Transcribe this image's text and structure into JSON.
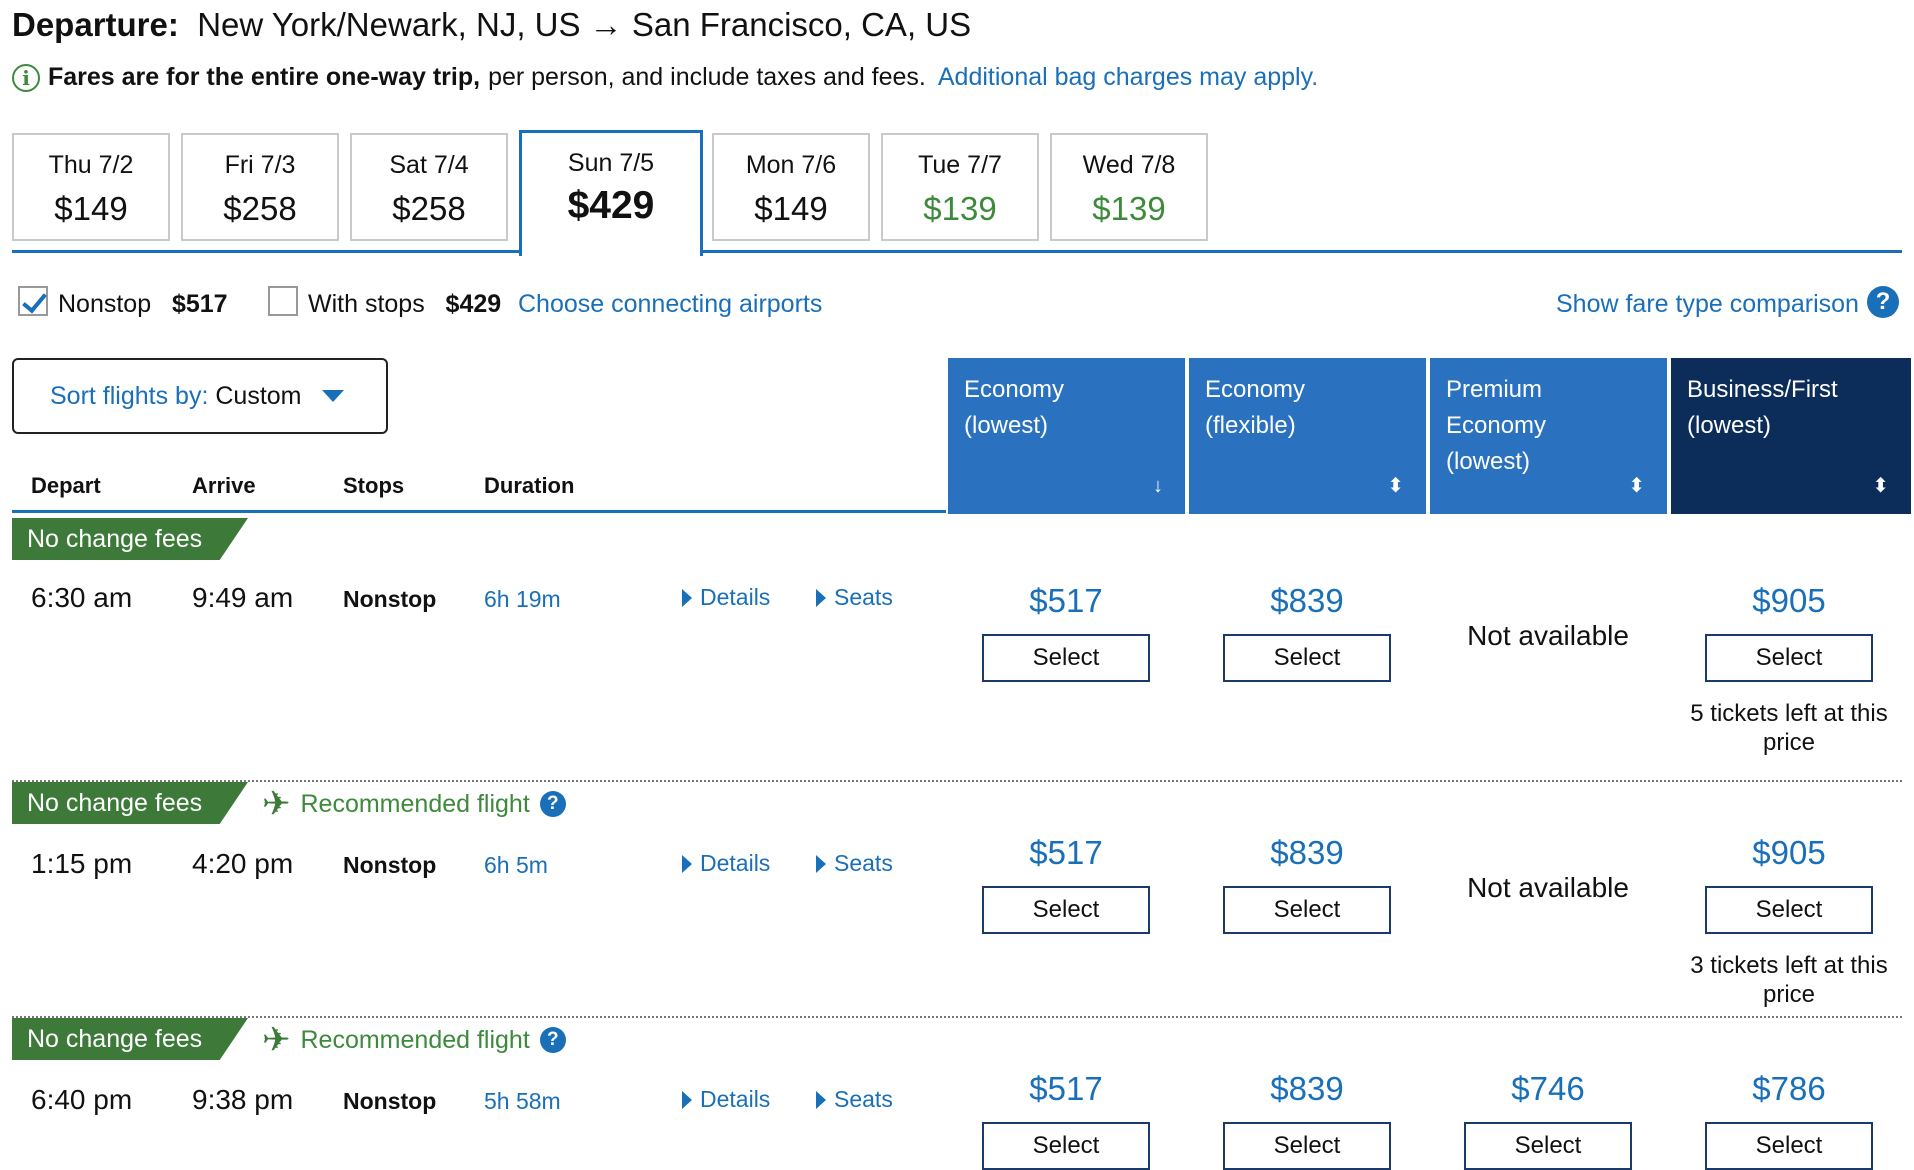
{
  "header": {
    "title_bold": "Departure:",
    "route": "New York/Newark, NJ, US → San Francisco, CA, US",
    "info_bold": "Fares are for the entire one-way trip,",
    "info_rest": "per person, and include taxes and fees.",
    "info_link": "Additional bag charges may apply."
  },
  "date_tabs": [
    {
      "day": "Thu 7/2",
      "price": "$149",
      "color": "#111111"
    },
    {
      "day": "Fri 7/3",
      "price": "$258",
      "color": "#111111"
    },
    {
      "day": "Sat 7/4",
      "price": "$258",
      "color": "#111111"
    },
    {
      "day": "Sun 7/5",
      "price": "$429",
      "color": "#111111",
      "active": true
    },
    {
      "day": "Mon 7/6",
      "price": "$149",
      "color": "#111111"
    },
    {
      "day": "Tue 7/7",
      "price": "$139",
      "color": "#3d8a3d"
    },
    {
      "day": "Wed 7/8",
      "price": "$139",
      "color": "#3d8a3d"
    }
  ],
  "filters": {
    "nonstop_label": "Nonstop",
    "nonstop_price": "$517",
    "nonstop_checked": true,
    "stops_label": "With stops",
    "stops_price": "$429",
    "stops_checked": false,
    "connecting_link": "Choose connecting airports",
    "fare_compare_link": "Show fare type comparison"
  },
  "sort": {
    "label": "Sort flights by:",
    "value": "Custom"
  },
  "columns": {
    "depart": "Depart",
    "arrive": "Arrive",
    "stops": "Stops",
    "duration": "Duration"
  },
  "cabins": [
    {
      "line1": "Economy",
      "line2": "(lowest)",
      "line3": "",
      "indicator": "↓"
    },
    {
      "line1": "Economy",
      "line2": "(flexible)",
      "line3": "",
      "indicator": "⬍"
    },
    {
      "line1": "Premium",
      "line2": "Economy",
      "line3": "(lowest)",
      "indicator": "⬍"
    },
    {
      "line1": "Business/First",
      "line2": "(lowest)",
      "line3": "",
      "indicator": "⬍"
    }
  ],
  "flights": [
    {
      "badge": "No change fees",
      "recommended": "",
      "depart": "6:30 am",
      "arrive": "9:49 am",
      "stops": "Nonstop",
      "duration": "6h 19m",
      "details": "Details",
      "seats": "Seats",
      "fares": [
        {
          "price": "$517",
          "select": "Select"
        },
        {
          "price": "$839",
          "select": "Select"
        },
        {
          "unavailable": "Not available"
        },
        {
          "price": "$905",
          "select": "Select",
          "note": "5 tickets left at this price"
        }
      ]
    },
    {
      "badge": "No change fees",
      "recommended": "Recommended flight",
      "depart": "1:15 pm",
      "arrive": "4:20 pm",
      "stops": "Nonstop",
      "duration": "6h 5m",
      "details": "Details",
      "seats": "Seats",
      "fares": [
        {
          "price": "$517",
          "select": "Select"
        },
        {
          "price": "$839",
          "select": "Select"
        },
        {
          "unavailable": "Not available"
        },
        {
          "price": "$905",
          "select": "Select",
          "note": "3 tickets left at this price"
        }
      ]
    },
    {
      "badge": "No change fees",
      "recommended": "Recommended flight",
      "depart": "6:40 pm",
      "arrive": "9:38 pm",
      "stops": "Nonstop",
      "duration": "5h 58m",
      "details": "Details",
      "seats": "Seats",
      "fares": [
        {
          "price": "$517",
          "select": "Select"
        },
        {
          "price": "$839",
          "select": "Select"
        },
        {
          "price": "$746",
          "select": "Select"
        },
        {
          "price": "$786",
          "select": "Select"
        }
      ]
    }
  ]
}
